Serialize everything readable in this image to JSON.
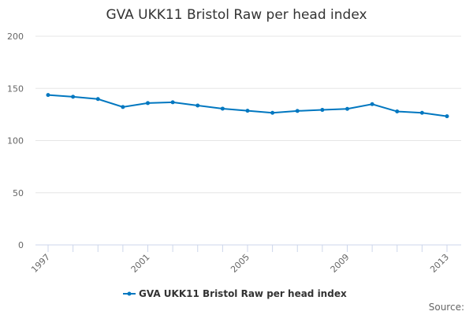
{
  "chart_data": {
    "type": "line",
    "title": "GVA UKK11 Bristol Raw per head index",
    "xlabel": "",
    "ylabel": "",
    "x": [
      1997,
      1998,
      1999,
      2000,
      2001,
      2002,
      2003,
      2004,
      2005,
      2006,
      2007,
      2008,
      2009,
      2010,
      2011,
      2012,
      2013
    ],
    "series": [
      {
        "name": "GVA UKK11 Bristol Raw per head index",
        "color": "#0077c0",
        "values": [
          143.7,
          142.0,
          139.8,
          132.2,
          135.9,
          136.7,
          133.6,
          130.6,
          128.6,
          126.6,
          128.4,
          129.4,
          130.4,
          134.9,
          127.9,
          126.6,
          123.3
        ]
      }
    ],
    "ylim": [
      0,
      200
    ],
    "yticks": [
      "0",
      "50",
      "100",
      "150",
      "200"
    ],
    "xticks": [
      "1997",
      "2001",
      "2005",
      "2009",
      "2013"
    ],
    "grid": true,
    "legend": "bottom-center",
    "credits": "Source:"
  }
}
